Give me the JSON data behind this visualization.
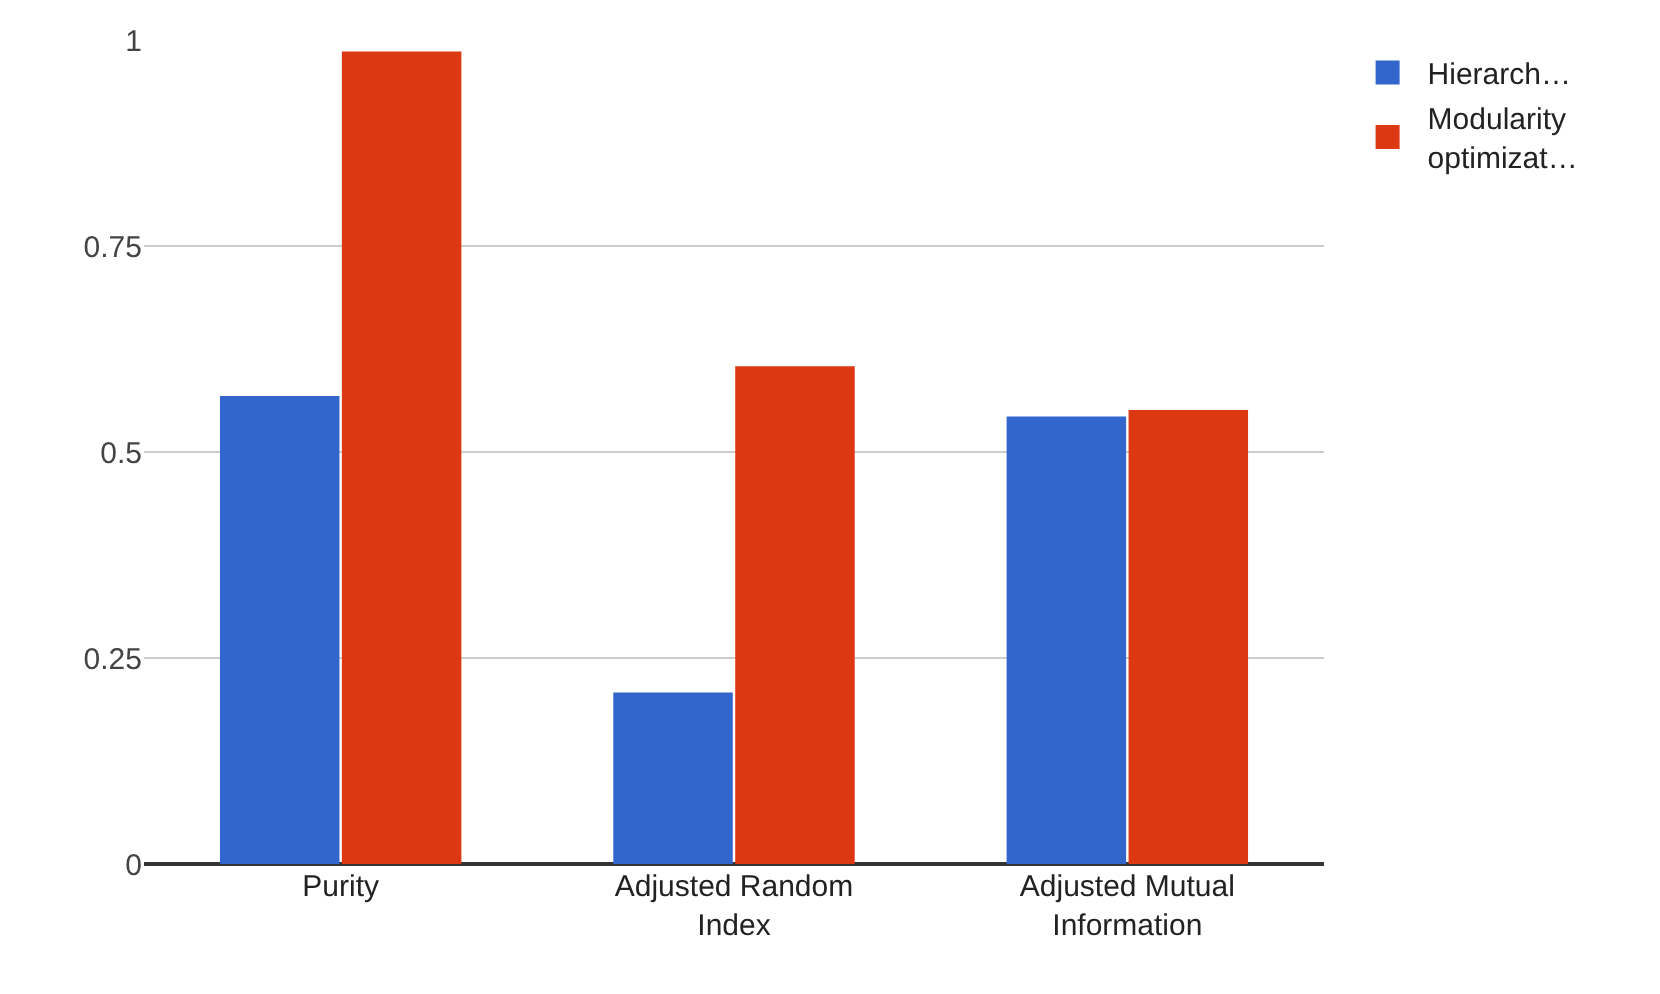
{
  "chart_data": {
    "type": "bar",
    "categories": [
      "Purity",
      "Adjusted Random Index",
      "Adjusted Mutual Information"
    ],
    "series": [
      {
        "name": "Hierarch…",
        "color": "#3366cc",
        "values": [
          0.568,
          0.208,
          0.543
        ]
      },
      {
        "name": "Modularity optimizat…",
        "color": "#dc3912",
        "values": [
          0.986,
          0.604,
          0.551
        ]
      }
    ],
    "ylim": [
      0,
      1
    ],
    "yticks": [
      0,
      0.25,
      0.5,
      0.75,
      1
    ],
    "grid": "y",
    "legend": "top right"
  }
}
